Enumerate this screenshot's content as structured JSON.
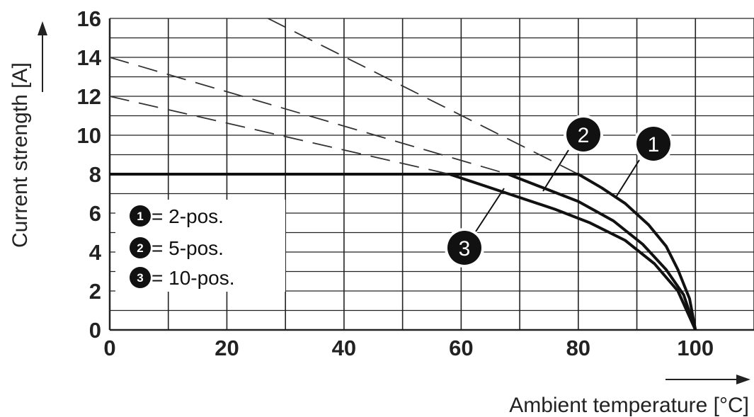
{
  "chart_data": {
    "type": "line",
    "title": "",
    "xlabel": "Ambient temperature [°C]",
    "ylabel": "Current strength [A]",
    "xlim": [
      0,
      110
    ],
    "ylim": [
      0,
      16
    ],
    "xticks": [
      0,
      20,
      40,
      60,
      80,
      100
    ],
    "yticks": [
      0,
      2,
      4,
      6,
      8,
      10,
      12,
      14,
      16
    ],
    "grid": true,
    "series": [
      {
        "marker": "1",
        "solid": [
          [
            0,
            8
          ],
          [
            80,
            8
          ],
          [
            84,
            7.3
          ],
          [
            88,
            6.5
          ],
          [
            92,
            5.4
          ],
          [
            95,
            4.3
          ],
          [
            97,
            3.1
          ],
          [
            99,
            1.6
          ],
          [
            100,
            0
          ]
        ],
        "dashed": [
          [
            27,
            16
          ],
          [
            80,
            8
          ]
        ]
      },
      {
        "marker": "2",
        "solid": [
          [
            68,
            8
          ],
          [
            74,
            7.3
          ],
          [
            80,
            6.6
          ],
          [
            86,
            5.6
          ],
          [
            91,
            4.4
          ],
          [
            95,
            3.1
          ],
          [
            98,
            1.8
          ],
          [
            100,
            0
          ]
        ],
        "dashed": [
          [
            0,
            14
          ],
          [
            68,
            8
          ]
        ]
      },
      {
        "marker": "3",
        "solid": [
          [
            58,
            8
          ],
          [
            64,
            7.4
          ],
          [
            70,
            6.8
          ],
          [
            76,
            6.2
          ],
          [
            82,
            5.5
          ],
          [
            88,
            4.6
          ],
          [
            93,
            3.4
          ],
          [
            97,
            2.0
          ],
          [
            100,
            0
          ]
        ],
        "dashed": [
          [
            0,
            12
          ],
          [
            58,
            8
          ]
        ]
      }
    ],
    "legend": {
      "position": "bottom-left",
      "items": [
        {
          "marker": "1",
          "text": "= 2-pos."
        },
        {
          "marker": "2",
          "text": "= 5-pos."
        },
        {
          "marker": "3",
          "text": "= 10-pos."
        }
      ]
    }
  }
}
